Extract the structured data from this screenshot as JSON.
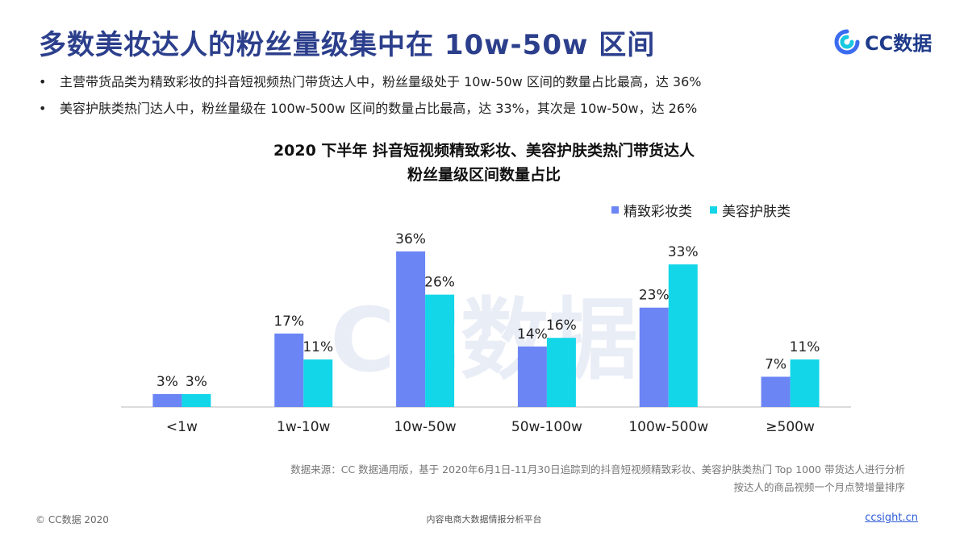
{
  "header": {
    "title": "多数美妆达人的粉丝量级集中在 10w-50w 区间",
    "logo_text": "CC数据",
    "logo_icon": "cc-data-logo-icon"
  },
  "bullets": [
    "主营带货品类为精致彩妆的抖音短视频热门带货达人中，粉丝量级处于 10w-50w 区间的数量占比最高，达 36%",
    "美容护肤类热门达人中，粉丝量级在 100w-500w 区间的数量占比最高，达 33%，其次是 10w-50w，达 26%"
  ],
  "chart_data": {
    "type": "bar",
    "title": "2020 下半年 抖音短视频精致彩妆、美容护肤类热门带货达人",
    "subtitle": "粉丝量级区间数量占比",
    "categories": [
      "<1w",
      "1w-10w",
      "10w-50w",
      "50w-100w",
      "100w-500w",
      "≥500w"
    ],
    "series": [
      {
        "name": "精致彩妆类",
        "values": [
          3,
          17,
          36,
          14,
          23,
          7
        ],
        "labels": [
          "3%",
          "17%",
          "36%",
          "14%",
          "23%",
          "7%"
        ],
        "color": "#6b85f5"
      },
      {
        "name": "美容护肤类",
        "values": [
          3,
          11,
          26,
          16,
          33,
          11
        ],
        "labels": [
          "3%",
          "11%",
          "26%",
          "16%",
          "33%",
          "11%"
        ],
        "color": "#13d6e8"
      }
    ],
    "ylim": [
      0,
      36
    ],
    "legend_position": "top-right",
    "grid": false,
    "watermark": "CC数据"
  },
  "source": {
    "line1": "数据来源：CC 数据通用版，基于 2020年6月1日-11月30日追踪到的抖音短视频精致彩妆、美容护肤类热门 Top 1000 带货达人进行分析",
    "line2": "按达人的商品视频一个月点赞增量排序"
  },
  "footer": {
    "copyright": "© CC数据 2020",
    "platform": "内容电商大数据情报分析平台",
    "site": "ccsight.cn"
  }
}
